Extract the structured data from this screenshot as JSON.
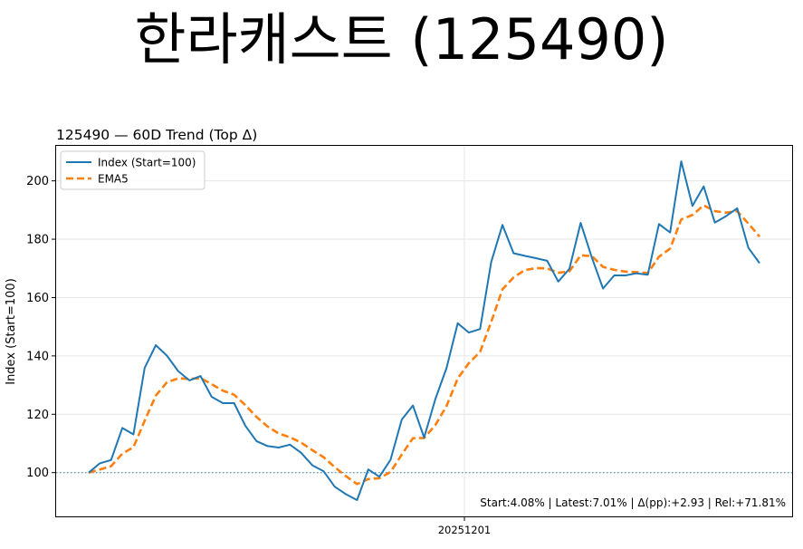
{
  "page": {
    "title": "한라캐스트 (125490)"
  },
  "chart_data": {
    "type": "line",
    "title": "125490 — 60D Trend (Top Δ)",
    "xlabel": "",
    "ylabel": "Index (Start=100)",
    "x_tick_labels": [
      "20251201"
    ],
    "ylim": [
      85,
      212
    ],
    "yticks": [
      100,
      120,
      140,
      160,
      180,
      200
    ],
    "grid": true,
    "legend": "top-left",
    "reference_line": 100,
    "annotation": "Start:4.08% | Latest:7.01% | Δ(pp):+2.93 | Rel:+71.81%",
    "colors": {
      "index": "#1f77b4",
      "ema": "#ff7f0e"
    },
    "series": [
      {
        "name": "Index (Start=100)",
        "style": "solid",
        "values": [
          100,
          103.2,
          104.3,
          115.3,
          113.1,
          135.9,
          143.7,
          140.1,
          134.8,
          131.6,
          133.1,
          126.0,
          123.8,
          123.8,
          116.1,
          110.8,
          109.1,
          108.6,
          109.6,
          106.8,
          102.5,
          100.5,
          95.2,
          92.6,
          90.6,
          101.1,
          98.6,
          104.4,
          118.2,
          123.0,
          112.0,
          125.2,
          135.8,
          151.2,
          148.0,
          149.2,
          172.2,
          184.9,
          175.2,
          174.3,
          173.5,
          172.6,
          165.5,
          169.9,
          185.6,
          173.7,
          163.1,
          167.6,
          167.6,
          168.3,
          167.8,
          185.2,
          182.3,
          206.7,
          191.4,
          198.1,
          185.7,
          187.9,
          190.6,
          177.1,
          171.8
        ]
      },
      {
        "name": "EMA5",
        "style": "dashed",
        "values": [
          100,
          101.1,
          102.2,
          106.5,
          108.7,
          117.8,
          126.4,
          131.0,
          132.3,
          132.1,
          132.4,
          130.3,
          128.1,
          126.7,
          123.2,
          119.1,
          115.8,
          113.4,
          112.1,
          110.3,
          107.7,
          105.3,
          101.9,
          98.8,
          96.1,
          97.8,
          98.1,
          100.2,
          106.2,
          111.8,
          111.9,
          116.3,
          122.8,
          132.3,
          137.5,
          141.4,
          151.7,
          162.8,
          166.9,
          169.4,
          170.1,
          170.0,
          168.5,
          169.0,
          174.5,
          174.2,
          170.5,
          169.5,
          168.9,
          168.7,
          168.4,
          174.0,
          176.8,
          186.8,
          188.3,
          191.6,
          189.6,
          189.1,
          189.6,
          185.4,
          180.9
        ]
      }
    ]
  }
}
